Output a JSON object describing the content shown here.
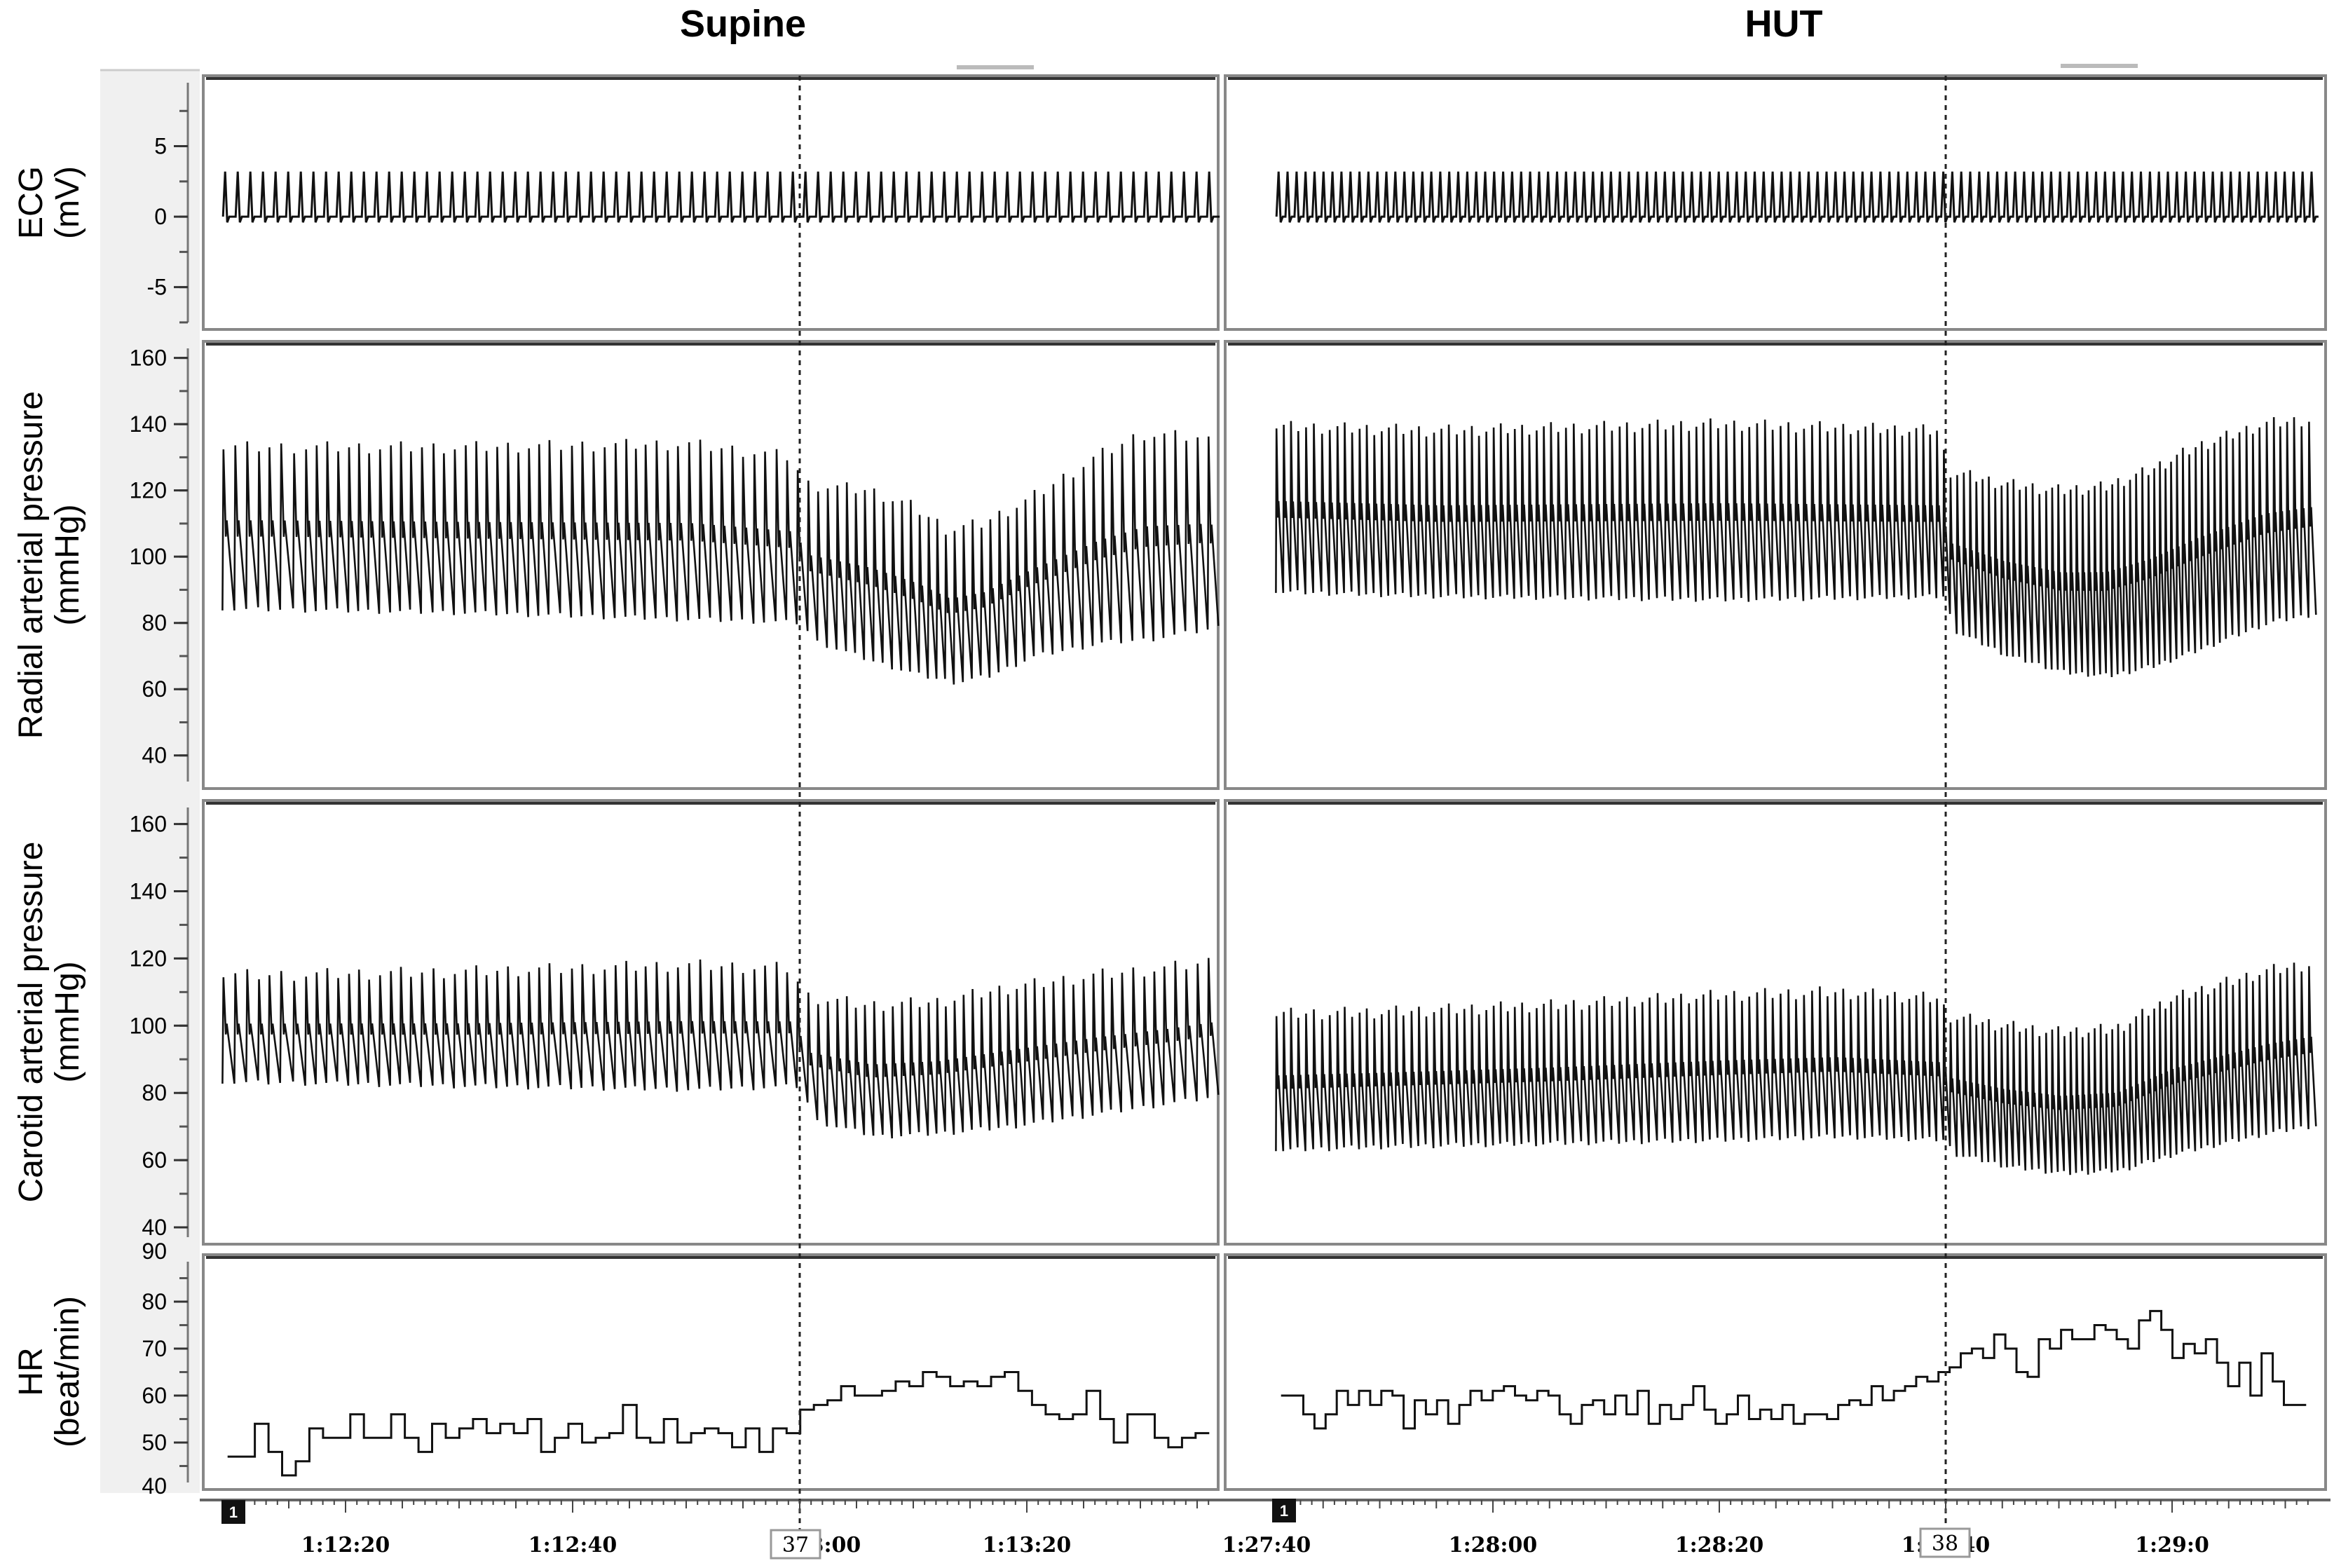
{
  "titles": {
    "left": "Supine",
    "right": "HUT"
  },
  "event_marker_labels": {
    "left": "37",
    "right": "38"
  },
  "track_badges": {
    "left": "1",
    "right": "1"
  },
  "colors": {
    "trace": "#111111",
    "frame": "#888888",
    "label_column": "#f0f0f0",
    "dashed_line": "#222222"
  },
  "chart_data": [
    {
      "type": "line",
      "title": "Supine",
      "time_ticks": [
        "1:12:20",
        "1:12:40",
        "13:00",
        "1:13:20"
      ],
      "time_seconds": [
        -47,
        3.5
      ],
      "time_tick_seconds": [
        -40,
        -20,
        0,
        20
      ],
      "event_marker": {
        "label": "37",
        "time": 0
      },
      "panels": [
        {
          "name": "ECG",
          "ylabel": [
            "ECG",
            "(mV)"
          ],
          "ylim": [
            -8,
            10
          ],
          "yticks": [
            -5,
            0,
            5
          ],
          "beats_per_min": 54,
          "baseline": 0.0,
          "peak": 3.2
        },
        {
          "name": "Radial arterial pressure",
          "ylabel": [
            "Radial arterial pressure",
            "(mmHg)"
          ],
          "ylim": [
            30,
            165
          ],
          "yticks": [
            40,
            60,
            80,
            100,
            120,
            140,
            160
          ],
          "systolic": {
            "x": [
              -47,
              -30,
              -10,
              -0.5,
              0,
              6,
              10,
              13,
              16,
              20,
              26,
              30,
              35,
              38,
              40,
              43,
              50
            ],
            "y": [
              133,
              133,
              134,
              130,
              122,
              120,
              115,
              108,
              110,
              117,
              130,
              137,
              136,
              133,
              130,
              132,
              132
            ]
          },
          "diastolic": {
            "x": [
              -47,
              -30,
              -10,
              -0.5,
              0,
              6,
              10,
              13,
              16,
              20,
              26,
              30,
              35,
              38,
              40,
              43,
              50
            ],
            "y": [
              84,
              83,
              81,
              80,
              75,
              68,
              64,
              62,
              64,
              70,
              74,
              75,
              78,
              80,
              76,
              77,
              77
            ]
          }
        },
        {
          "name": "Carotid arterial pressure",
          "ylabel": [
            "Carotid arterial pressure",
            "(mmHg)"
          ],
          "ylim": [
            35,
            167
          ],
          "yticks": [
            40,
            60,
            80,
            100,
            120,
            140,
            160
          ],
          "systolic": {
            "x": [
              -47,
              -30,
              -10,
              -0.5,
              0,
              6,
              12,
              18,
              26,
              32,
              38,
              43,
              50
            ],
            "y": [
              115,
              116,
              118,
              117,
              109,
              106,
              107,
              111,
              115,
              117,
              120,
              122,
              122
            ]
          },
          "diastolic": {
            "x": [
              -47,
              -30,
              -10,
              -0.5,
              0,
              6,
              12,
              18,
              26,
              32,
              38,
              43,
              50
            ],
            "y": [
              83,
              82,
              81,
              82,
              72,
              67,
              68,
              70,
              74,
              77,
              80,
              82,
              82
            ]
          }
        },
        {
          "name": "HR",
          "ylabel": [
            "HR",
            "(beat/min)"
          ],
          "ylim": [
            40,
            90
          ],
          "yticks": [
            50,
            60,
            70,
            80
          ],
          "yticks_clipped": [
            "40",
            "90"
          ],
          "steps": [
            47,
            47,
            54,
            48,
            43,
            46,
            53,
            51,
            51,
            56,
            51,
            51,
            56,
            51,
            48,
            54,
            51,
            53,
            55,
            52,
            54,
            52,
            55,
            48,
            51,
            54,
            50,
            51,
            52,
            58,
            51,
            50,
            55,
            50,
            52,
            53,
            52,
            49,
            53,
            48,
            53,
            52,
            57,
            58,
            59,
            62,
            60,
            60,
            61,
            63,
            62,
            65,
            64,
            62,
            63,
            62,
            64,
            65,
            61,
            58,
            56,
            55,
            56,
            61,
            55,
            50,
            56,
            56,
            51,
            49,
            51,
            52
          ]
        }
      ]
    },
    {
      "type": "line",
      "title": "HUT",
      "time_ticks": [
        "1:27:40",
        "1:28:00",
        "1:28:20",
        "1:28:40",
        "1:29:0"
      ],
      "time_seconds": [
        -67,
        0
      ],
      "time_tick_seconds": [
        -60,
        -40,
        -20,
        0,
        20
      ],
      "event_marker": {
        "label": "38",
        "time": 0
      },
      "panels": [
        {
          "name": "ECG",
          "ylabel": [
            "ECG",
            "(mV)"
          ],
          "ylim": [
            -8,
            10
          ],
          "yticks": [
            -5,
            0,
            5
          ],
          "beats_per_min": 62,
          "baseline": 0.0,
          "peak": 3.2
        },
        {
          "name": "Radial arterial pressure",
          "ylabel": [
            "Radial arterial pressure",
            "(mmHg)"
          ],
          "ylim": [
            30,
            165
          ],
          "yticks": [
            40,
            60,
            80,
            100,
            120,
            140,
            160
          ],
          "systolic": {
            "x": [
              -67,
              -45,
              -20,
              -0.5,
              0,
              5,
              10,
              14,
              18,
              22,
              28,
              34,
              40,
              45,
              49
            ],
            "y": [
              140,
              138,
              140,
              138,
              126,
              122,
              120,
              121,
              126,
              133,
              140,
              142,
              144,
              143,
              142
            ]
          },
          "diastolic": {
            "x": [
              -67,
              -45,
              -20,
              -0.5,
              0,
              5,
              10,
              14,
              18,
              22,
              28,
              34,
              40,
              45,
              49
            ],
            "y": [
              90,
              88,
              87,
              88,
              78,
              70,
              65,
              64,
              67,
              72,
              80,
              84,
              86,
              86,
              86
            ]
          }
        },
        {
          "name": "Carotid arterial pressure",
          "ylabel": [
            "Carotid arterial pressure",
            "(mmHg)"
          ],
          "ylim": [
            35,
            167
          ],
          "yticks": [
            40,
            60,
            80,
            100,
            120,
            140,
            160
          ],
          "systolic": {
            "x": [
              -67,
              -50,
              -35,
              -20,
              -10,
              -0.5,
              0,
              5,
              10,
              15,
              20,
              28,
              35,
              42,
              49
            ],
            "y": [
              103,
              104,
              106,
              109,
              110,
              108,
              103,
              100,
              98,
              99,
              108,
              116,
              120,
              123,
              124
            ]
          },
          "diastolic": {
            "x": [
              -67,
              -50,
              -35,
              -20,
              -10,
              -0.5,
              0,
              5,
              10,
              15,
              20,
              28,
              35,
              42,
              49
            ],
            "y": [
              62,
              64,
              65,
              66,
              67,
              66,
              62,
              58,
              56,
              57,
              62,
              68,
              72,
              74,
              75
            ]
          }
        },
        {
          "name": "HR",
          "ylabel": [
            "HR",
            "(beat/min)"
          ],
          "ylim": [
            40,
            90
          ],
          "yticks": [
            50,
            60,
            70,
            80
          ],
          "yticks_clipped": [
            "40",
            "90"
          ],
          "steps": [
            60,
            60,
            56,
            53,
            56,
            61,
            58,
            61,
            58,
            61,
            60,
            53,
            59,
            56,
            59,
            54,
            58,
            61,
            59,
            61,
            62,
            60,
            59,
            61,
            60,
            56,
            54,
            58,
            59,
            56,
            60,
            56,
            61,
            54,
            58,
            55,
            58,
            62,
            57,
            54,
            56,
            60,
            55,
            57,
            55,
            58,
            54,
            56,
            56,
            55,
            58,
            59,
            58,
            62,
            59,
            61,
            62,
            64,
            63,
            65,
            66,
            69,
            70,
            68,
            73,
            70,
            65,
            64,
            72,
            70,
            74,
            72,
            72,
            75,
            74,
            72,
            70,
            76,
            78,
            74,
            68,
            71,
            69,
            72,
            67,
            62,
            67,
            60,
            69,
            63,
            58,
            58
          ]
        }
      ]
    }
  ]
}
